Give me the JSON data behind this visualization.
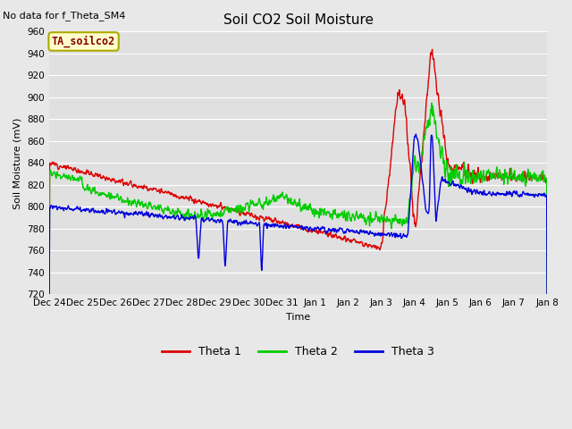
{
  "title": "Soil CO2 Soil Moisture",
  "ylabel": "Soil Moisture (mV)",
  "xlabel": "Time",
  "no_data_text": "No data for f_Theta_SM4",
  "annotation_text": "TA_soilco2",
  "ylim": [
    720,
    960
  ],
  "background_color": "#e0e0e0",
  "fig_bg_color": "#e8e8e8",
  "grid_color": "#ffffff",
  "legend": [
    "Theta 1",
    "Theta 2",
    "Theta 3"
  ],
  "line_colors": [
    "#dd0000",
    "#00cc00",
    "#0000dd"
  ],
  "x_tick_labels": [
    "Dec 24",
    "Dec 25",
    "Dec 26",
    "Dec 27",
    "Dec 28",
    "Dec 29",
    "Dec 30",
    "Dec 31",
    "Jan 1",
    "Jan 2",
    "Jan 3",
    "Jan 4",
    "Jan 5",
    "Jan 6",
    "Jan 7",
    "Jan 8"
  ],
  "title_fontsize": 11,
  "label_fontsize": 8,
  "tick_fontsize": 7.5
}
